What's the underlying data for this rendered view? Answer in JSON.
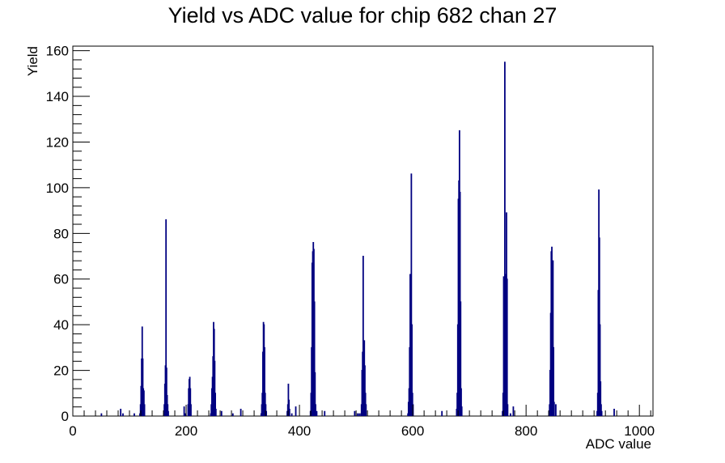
{
  "chart_data": {
    "type": "bar",
    "title": "Yield vs ADC value for chip 682 chan 27",
    "xlabel": "ADC value",
    "ylabel": "Yield",
    "xlim": [
      0,
      1024
    ],
    "ylim": [
      0,
      162
    ],
    "xticks": [
      0,
      200,
      400,
      600,
      800,
      1000
    ],
    "yticks": [
      0,
      20,
      40,
      60,
      80,
      100,
      120,
      140,
      160
    ],
    "grid": false,
    "legend": "none",
    "line_color": "#000080",
    "bin_width": 1,
    "bins": [
      [
        50,
        1
      ],
      [
        84,
        3
      ],
      [
        88,
        1
      ],
      [
        108,
        1
      ],
      [
        118,
        1
      ],
      [
        119,
        5
      ],
      [
        120,
        13
      ],
      [
        121,
        25
      ],
      [
        122,
        39
      ],
      [
        123,
        25
      ],
      [
        124,
        12
      ],
      [
        125,
        11
      ],
      [
        126,
        5
      ],
      [
        160,
        1
      ],
      [
        161,
        5
      ],
      [
        162,
        14
      ],
      [
        163,
        22
      ],
      [
        164,
        86
      ],
      [
        165,
        21
      ],
      [
        166,
        9
      ],
      [
        167,
        5
      ],
      [
        168,
        2
      ],
      [
        196,
        4
      ],
      [
        198,
        1
      ],
      [
        203,
        5
      ],
      [
        204,
        12
      ],
      [
        205,
        16
      ],
      [
        206,
        17
      ],
      [
        207,
        12
      ],
      [
        208,
        5
      ],
      [
        243,
        1
      ],
      [
        244,
        5
      ],
      [
        245,
        12
      ],
      [
        246,
        17
      ],
      [
        247,
        26
      ],
      [
        248,
        41
      ],
      [
        249,
        38
      ],
      [
        250,
        24
      ],
      [
        251,
        10
      ],
      [
        252,
        3
      ],
      [
        262,
        2
      ],
      [
        282,
        1
      ],
      [
        296,
        3
      ],
      [
        332,
        1
      ],
      [
        333,
        5
      ],
      [
        334,
        10
      ],
      [
        335,
        28
      ],
      [
        336,
        41
      ],
      [
        337,
        40
      ],
      [
        338,
        30
      ],
      [
        339,
        10
      ],
      [
        340,
        5
      ],
      [
        341,
        2
      ],
      [
        378,
        2
      ],
      [
        379,
        5
      ],
      [
        380,
        14
      ],
      [
        381,
        7
      ],
      [
        382,
        3
      ],
      [
        386,
        1
      ],
      [
        393,
        4
      ],
      [
        419,
        2
      ],
      [
        420,
        10
      ],
      [
        421,
        30
      ],
      [
        422,
        67
      ],
      [
        423,
        72
      ],
      [
        424,
        76
      ],
      [
        425,
        73
      ],
      [
        426,
        50
      ],
      [
        427,
        19
      ],
      [
        428,
        5
      ],
      [
        430,
        2
      ],
      [
        444,
        2
      ],
      [
        497,
        2
      ],
      [
        502,
        1
      ],
      [
        505,
        1
      ],
      [
        508,
        1
      ],
      [
        509,
        5
      ],
      [
        510,
        20
      ],
      [
        511,
        28
      ],
      [
        512,
        70
      ],
      [
        513,
        28
      ],
      [
        514,
        33
      ],
      [
        515,
        22
      ],
      [
        516,
        10
      ],
      [
        517,
        5
      ],
      [
        591,
        1
      ],
      [
        592,
        6
      ],
      [
        593,
        12
      ],
      [
        594,
        30
      ],
      [
        595,
        62
      ],
      [
        596,
        27
      ],
      [
        597,
        106
      ],
      [
        598,
        40
      ],
      [
        599,
        10
      ],
      [
        600,
        5
      ],
      [
        651,
        2
      ],
      [
        677,
        3
      ],
      [
        678,
        10
      ],
      [
        679,
        40
      ],
      [
        680,
        95
      ],
      [
        681,
        103
      ],
      [
        682,
        125
      ],
      [
        683,
        98
      ],
      [
        684,
        50
      ],
      [
        685,
        12
      ],
      [
        686,
        4
      ],
      [
        758,
        2
      ],
      [
        759,
        10
      ],
      [
        760,
        61
      ],
      [
        761,
        50
      ],
      [
        762,
        155
      ],
      [
        763,
        62
      ],
      [
        764,
        50
      ],
      [
        765,
        89
      ],
      [
        766,
        60
      ],
      [
        767,
        5
      ],
      [
        772,
        1
      ],
      [
        777,
        4
      ],
      [
        840,
        2
      ],
      [
        841,
        5
      ],
      [
        842,
        20
      ],
      [
        843,
        45
      ],
      [
        844,
        72
      ],
      [
        845,
        74
      ],
      [
        846,
        60
      ],
      [
        847,
        68
      ],
      [
        848,
        30
      ],
      [
        849,
        6
      ],
      [
        852,
        5
      ],
      [
        925,
        2
      ],
      [
        926,
        10
      ],
      [
        927,
        55
      ],
      [
        928,
        99
      ],
      [
        929,
        78
      ],
      [
        930,
        40
      ],
      [
        931,
        15
      ],
      [
        932,
        5
      ],
      [
        933,
        2
      ],
      [
        955,
        3
      ]
    ]
  }
}
